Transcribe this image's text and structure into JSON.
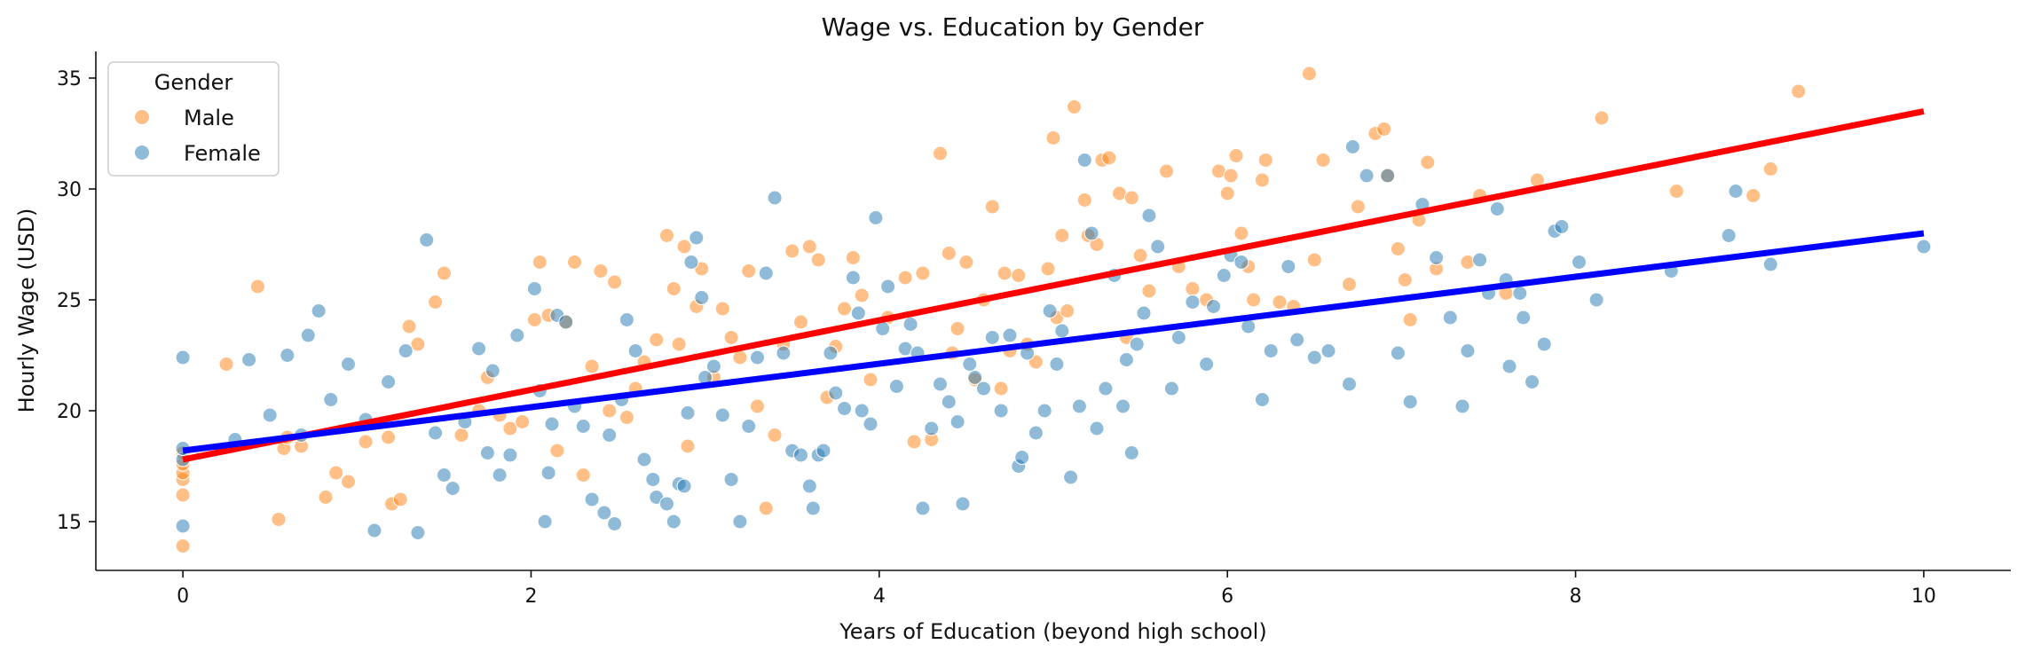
{
  "chart_data": {
    "type": "scatter",
    "title": "Wage vs. Education by Gender",
    "xlabel": "Years of Education (beyond high school)",
    "ylabel": "Hourly Wage (USD)",
    "xlim": [
      -0.5,
      10.5
    ],
    "ylim": [
      12.8,
      36.2
    ],
    "xticks": [
      0,
      2,
      4,
      6,
      8,
      10
    ],
    "yticks": [
      15,
      20,
      25,
      30,
      35
    ],
    "grid": false,
    "legend": {
      "title": "Gender",
      "placement": "top-left"
    },
    "series": [
      {
        "name": "Male",
        "color": "#ff7f0e",
        "points": [
          [
            0,
            13.9
          ],
          [
            0,
            16.2
          ],
          [
            0,
            16.9
          ],
          [
            0,
            17.2
          ],
          [
            0,
            17.6
          ],
          [
            0,
            18.1
          ],
          [
            0.25,
            22.1
          ],
          [
            0.43,
            25.6
          ],
          [
            0.55,
            15.1
          ],
          [
            0.58,
            18.3
          ],
          [
            0.6,
            18.8
          ],
          [
            0.68,
            18.4
          ],
          [
            0.82,
            16.1
          ],
          [
            0.88,
            17.2
          ],
          [
            0.95,
            16.8
          ],
          [
            1.05,
            18.6
          ],
          [
            1.18,
            18.8
          ],
          [
            1.2,
            15.8
          ],
          [
            1.25,
            16.0
          ],
          [
            1.3,
            23.8
          ],
          [
            1.35,
            23.0
          ],
          [
            1.45,
            24.9
          ],
          [
            1.5,
            26.2
          ],
          [
            1.6,
            18.9
          ],
          [
            1.7,
            20.0
          ],
          [
            1.75,
            21.5
          ],
          [
            1.82,
            19.8
          ],
          [
            1.88,
            19.2
          ],
          [
            1.95,
            19.5
          ],
          [
            2.02,
            24.1
          ],
          [
            2.05,
            26.7
          ],
          [
            2.1,
            24.3
          ],
          [
            2.15,
            18.2
          ],
          [
            2.2,
            24.0
          ],
          [
            2.25,
            26.7
          ],
          [
            2.3,
            17.1
          ],
          [
            2.35,
            22.0
          ],
          [
            2.4,
            26.3
          ],
          [
            2.45,
            20.0
          ],
          [
            2.48,
            25.8
          ],
          [
            2.55,
            19.7
          ],
          [
            2.6,
            21.0
          ],
          [
            2.65,
            22.2
          ],
          [
            2.72,
            23.2
          ],
          [
            2.78,
            27.9
          ],
          [
            2.82,
            25.5
          ],
          [
            2.85,
            23.0
          ],
          [
            2.88,
            27.4
          ],
          [
            2.9,
            18.4
          ],
          [
            2.95,
            24.7
          ],
          [
            2.98,
            26.4
          ],
          [
            3.05,
            21.5
          ],
          [
            3.1,
            24.6
          ],
          [
            3.15,
            23.3
          ],
          [
            3.2,
            22.4
          ],
          [
            3.25,
            26.3
          ],
          [
            3.3,
            20.2
          ],
          [
            3.35,
            15.6
          ],
          [
            3.4,
            18.9
          ],
          [
            3.45,
            23.0
          ],
          [
            3.5,
            27.2
          ],
          [
            3.55,
            24.0
          ],
          [
            3.6,
            27.4
          ],
          [
            3.65,
            26.8
          ],
          [
            3.7,
            20.6
          ],
          [
            3.75,
            22.9
          ],
          [
            3.8,
            24.6
          ],
          [
            3.85,
            26.9
          ],
          [
            3.9,
            25.2
          ],
          [
            3.95,
            21.4
          ],
          [
            4.05,
            24.2
          ],
          [
            4.15,
            26.0
          ],
          [
            4.2,
            18.6
          ],
          [
            4.25,
            26.2
          ],
          [
            4.3,
            18.7
          ],
          [
            4.35,
            31.6
          ],
          [
            4.4,
            27.1
          ],
          [
            4.42,
            22.6
          ],
          [
            4.45,
            23.7
          ],
          [
            4.5,
            26.7
          ],
          [
            4.55,
            21.4
          ],
          [
            4.6,
            25.0
          ],
          [
            4.65,
            29.2
          ],
          [
            4.7,
            21.0
          ],
          [
            4.72,
            26.2
          ],
          [
            4.75,
            22.7
          ],
          [
            4.8,
            26.1
          ],
          [
            4.85,
            23.0
          ],
          [
            4.9,
            22.2
          ],
          [
            4.97,
            26.4
          ],
          [
            5.0,
            32.3
          ],
          [
            5.02,
            24.2
          ],
          [
            5.05,
            27.9
          ],
          [
            5.08,
            24.5
          ],
          [
            5.12,
            33.7
          ],
          [
            5.18,
            29.5
          ],
          [
            5.2,
            27.9
          ],
          [
            5.25,
            27.5
          ],
          [
            5.28,
            31.3
          ],
          [
            5.32,
            31.4
          ],
          [
            5.38,
            29.8
          ],
          [
            5.42,
            23.3
          ],
          [
            5.45,
            29.6
          ],
          [
            5.5,
            27.0
          ],
          [
            5.55,
            25.4
          ],
          [
            5.65,
            30.8
          ],
          [
            5.72,
            26.5
          ],
          [
            5.8,
            25.5
          ],
          [
            5.88,
            25.0
          ],
          [
            5.95,
            30.8
          ],
          [
            6.0,
            29.8
          ],
          [
            6.02,
            30.6
          ],
          [
            6.05,
            31.5
          ],
          [
            6.08,
            28.0
          ],
          [
            6.12,
            26.5
          ],
          [
            6.15,
            25.0
          ],
          [
            6.2,
            30.4
          ],
          [
            6.22,
            31.3
          ],
          [
            6.3,
            24.9
          ],
          [
            6.38,
            24.7
          ],
          [
            6.47,
            35.2
          ],
          [
            6.5,
            26.8
          ],
          [
            6.55,
            31.3
          ],
          [
            6.7,
            25.7
          ],
          [
            6.75,
            29.2
          ],
          [
            6.85,
            32.5
          ],
          [
            6.9,
            32.7
          ],
          [
            6.92,
            30.6
          ],
          [
            6.98,
            27.3
          ],
          [
            7.02,
            25.9
          ],
          [
            7.05,
            24.1
          ],
          [
            7.1,
            28.6
          ],
          [
            7.15,
            31.2
          ],
          [
            7.2,
            26.4
          ],
          [
            7.38,
            26.7
          ],
          [
            7.45,
            29.7
          ],
          [
            7.6,
            25.3
          ],
          [
            7.78,
            30.4
          ],
          [
            8.15,
            33.2
          ],
          [
            8.58,
            29.9
          ],
          [
            9.02,
            29.7
          ],
          [
            9.12,
            30.9
          ],
          [
            9.28,
            34.4
          ]
        ]
      },
      {
        "name": "Female",
        "color": "#1f77b4",
        "points": [
          [
            0,
            14.8
          ],
          [
            0,
            17.8
          ],
          [
            0,
            18.3
          ],
          [
            0,
            22.4
          ],
          [
            0.3,
            18.7
          ],
          [
            0.38,
            22.3
          ],
          [
            0.5,
            19.8
          ],
          [
            0.6,
            22.5
          ],
          [
            0.68,
            18.9
          ],
          [
            0.72,
            23.4
          ],
          [
            0.78,
            24.5
          ],
          [
            0.85,
            20.5
          ],
          [
            0.95,
            22.1
          ],
          [
            1.05,
            19.6
          ],
          [
            1.1,
            14.6
          ],
          [
            1.18,
            21.3
          ],
          [
            1.28,
            22.7
          ],
          [
            1.35,
            14.5
          ],
          [
            1.4,
            27.7
          ],
          [
            1.45,
            19.0
          ],
          [
            1.5,
            17.1
          ],
          [
            1.55,
            16.5
          ],
          [
            1.62,
            19.5
          ],
          [
            1.7,
            22.8
          ],
          [
            1.75,
            18.1
          ],
          [
            1.78,
            21.8
          ],
          [
            1.82,
            17.1
          ],
          [
            1.88,
            18.0
          ],
          [
            1.92,
            23.4
          ],
          [
            2.02,
            25.5
          ],
          [
            2.05,
            20.9
          ],
          [
            2.08,
            15.0
          ],
          [
            2.1,
            17.2
          ],
          [
            2.12,
            19.4
          ],
          [
            2.15,
            24.3
          ],
          [
            2.2,
            24.0
          ],
          [
            2.25,
            20.2
          ],
          [
            2.3,
            19.3
          ],
          [
            2.35,
            16.0
          ],
          [
            2.42,
            15.4
          ],
          [
            2.45,
            18.9
          ],
          [
            2.48,
            14.9
          ],
          [
            2.52,
            20.5
          ],
          [
            2.55,
            24.1
          ],
          [
            2.6,
            22.7
          ],
          [
            2.65,
            17.8
          ],
          [
            2.7,
            16.9
          ],
          [
            2.72,
            16.1
          ],
          [
            2.78,
            15.8
          ],
          [
            2.82,
            15.0
          ],
          [
            2.85,
            16.7
          ],
          [
            2.88,
            16.6
          ],
          [
            2.9,
            19.9
          ],
          [
            2.92,
            26.7
          ],
          [
            2.95,
            27.8
          ],
          [
            2.98,
            25.1
          ],
          [
            3.0,
            21.5
          ],
          [
            3.05,
            22.0
          ],
          [
            3.1,
            19.8
          ],
          [
            3.15,
            16.9
          ],
          [
            3.2,
            15.0
          ],
          [
            3.25,
            19.3
          ],
          [
            3.3,
            22.4
          ],
          [
            3.35,
            26.2
          ],
          [
            3.4,
            29.6
          ],
          [
            3.45,
            22.6
          ],
          [
            3.5,
            18.2
          ],
          [
            3.55,
            18.0
          ],
          [
            3.6,
            16.6
          ],
          [
            3.62,
            15.6
          ],
          [
            3.65,
            18.0
          ],
          [
            3.68,
            18.2
          ],
          [
            3.72,
            22.6
          ],
          [
            3.75,
            20.8
          ],
          [
            3.8,
            20.1
          ],
          [
            3.85,
            26.0
          ],
          [
            3.88,
            24.4
          ],
          [
            3.9,
            20.0
          ],
          [
            3.95,
            19.4
          ],
          [
            3.98,
            28.7
          ],
          [
            4.02,
            23.7
          ],
          [
            4.05,
            25.6
          ],
          [
            4.1,
            21.1
          ],
          [
            4.15,
            22.8
          ],
          [
            4.18,
            23.9
          ],
          [
            4.22,
            22.6
          ],
          [
            4.25,
            15.6
          ],
          [
            4.3,
            19.2
          ],
          [
            4.35,
            21.2
          ],
          [
            4.4,
            20.4
          ],
          [
            4.45,
            19.5
          ],
          [
            4.48,
            15.8
          ],
          [
            4.52,
            22.1
          ],
          [
            4.55,
            21.5
          ],
          [
            4.6,
            21.0
          ],
          [
            4.65,
            23.3
          ],
          [
            4.7,
            20.0
          ],
          [
            4.75,
            23.4
          ],
          [
            4.8,
            17.5
          ],
          [
            4.82,
            17.9
          ],
          [
            4.85,
            22.6
          ],
          [
            4.9,
            19.0
          ],
          [
            4.95,
            20.0
          ],
          [
            4.98,
            24.5
          ],
          [
            5.02,
            22.1
          ],
          [
            5.05,
            23.6
          ],
          [
            5.1,
            17.0
          ],
          [
            5.15,
            20.2
          ],
          [
            5.18,
            31.3
          ],
          [
            5.22,
            28.0
          ],
          [
            5.25,
            19.2
          ],
          [
            5.3,
            21.0
          ],
          [
            5.35,
            26.1
          ],
          [
            5.4,
            20.2
          ],
          [
            5.42,
            22.3
          ],
          [
            5.45,
            18.1
          ],
          [
            5.48,
            23.0
          ],
          [
            5.52,
            24.4
          ],
          [
            5.55,
            28.8
          ],
          [
            5.6,
            27.4
          ],
          [
            5.68,
            21.0
          ],
          [
            5.72,
            23.3
          ],
          [
            5.8,
            24.9
          ],
          [
            5.88,
            22.1
          ],
          [
            5.92,
            24.7
          ],
          [
            5.98,
            26.1
          ],
          [
            6.02,
            27.0
          ],
          [
            6.08,
            26.7
          ],
          [
            6.12,
            23.8
          ],
          [
            6.2,
            20.5
          ],
          [
            6.25,
            22.7
          ],
          [
            6.35,
            26.5
          ],
          [
            6.4,
            23.2
          ],
          [
            6.5,
            22.4
          ],
          [
            6.58,
            22.7
          ],
          [
            6.7,
            21.2
          ],
          [
            6.72,
            31.9
          ],
          [
            6.8,
            30.6
          ],
          [
            6.92,
            30.6
          ],
          [
            6.98,
            22.6
          ],
          [
            7.05,
            20.4
          ],
          [
            7.12,
            29.3
          ],
          [
            7.2,
            26.9
          ],
          [
            7.28,
            24.2
          ],
          [
            7.35,
            20.2
          ],
          [
            7.38,
            22.7
          ],
          [
            7.45,
            26.8
          ],
          [
            7.5,
            25.3
          ],
          [
            7.55,
            29.1
          ],
          [
            7.6,
            25.9
          ],
          [
            7.62,
            22.0
          ],
          [
            7.68,
            25.3
          ],
          [
            7.7,
            24.2
          ],
          [
            7.75,
            21.3
          ],
          [
            7.82,
            23.0
          ],
          [
            7.88,
            28.1
          ],
          [
            7.92,
            28.3
          ],
          [
            8.02,
            26.7
          ],
          [
            8.12,
            25.0
          ],
          [
            8.55,
            26.3
          ],
          [
            8.88,
            27.9
          ],
          [
            8.92,
            29.9
          ],
          [
            9.12,
            26.6
          ],
          [
            10.0,
            27.4
          ]
        ]
      }
    ],
    "trend_lines": [
      {
        "series": "Male",
        "color": "#ff0000",
        "from": [
          0,
          17.8
        ],
        "to": [
          10,
          33.5
        ]
      },
      {
        "series": "Female",
        "color": "#0000ff",
        "from": [
          0,
          18.2
        ],
        "to": [
          10,
          28.0
        ]
      }
    ]
  }
}
